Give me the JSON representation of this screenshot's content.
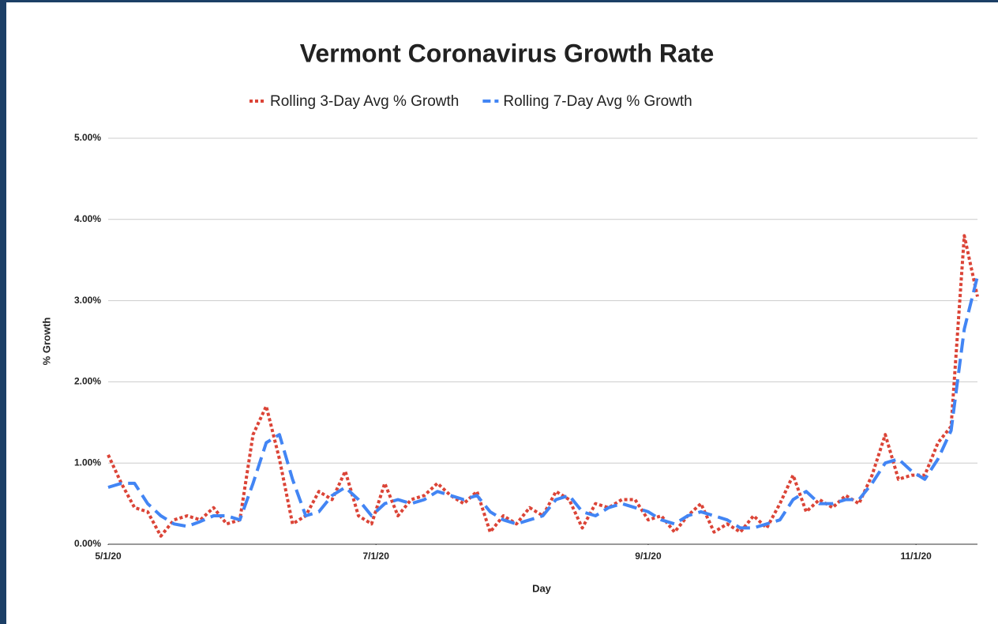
{
  "chart_data": {
    "type": "line",
    "title": "Vermont Coronavirus Growth Rate",
    "x_label": "Day",
    "y_label": "% Growth",
    "x": [
      "5/1/20",
      "5/4/20",
      "5/7/20",
      "5/10/20",
      "5/13/20",
      "5/16/20",
      "5/19/20",
      "5/22/20",
      "5/25/20",
      "5/28/20",
      "5/31/20",
      "6/3/20",
      "6/6/20",
      "6/9/20",
      "6/12/20",
      "6/15/20",
      "6/18/20",
      "6/21/20",
      "6/24/20",
      "6/27/20",
      "6/30/20",
      "7/3/20",
      "7/6/20",
      "7/9/20",
      "7/12/20",
      "7/15/20",
      "7/18/20",
      "7/21/20",
      "7/24/20",
      "7/27/20",
      "7/30/20",
      "8/2/20",
      "8/5/20",
      "8/8/20",
      "8/11/20",
      "8/14/20",
      "8/17/20",
      "8/20/20",
      "8/23/20",
      "8/26/20",
      "8/29/20",
      "9/1/20",
      "9/4/20",
      "9/7/20",
      "9/10/20",
      "9/13/20",
      "9/16/20",
      "9/19/20",
      "9/22/20",
      "9/25/20",
      "9/28/20",
      "10/1/20",
      "10/4/20",
      "10/7/20",
      "10/10/20",
      "10/13/20",
      "10/16/20",
      "10/19/20",
      "10/22/20",
      "10/25/20",
      "10/28/20",
      "10/31/20",
      "11/3/20",
      "11/6/20",
      "11/9/20",
      "11/12/20",
      "11/15/20"
    ],
    "series": [
      {
        "name": "Rolling 3-Day Avg % Growth",
        "color": "#db4437",
        "dash": "dotted",
        "values": [
          1.1,
          0.75,
          0.45,
          0.4,
          0.1,
          0.3,
          0.35,
          0.3,
          0.45,
          0.25,
          0.3,
          1.35,
          1.7,
          1.05,
          0.25,
          0.35,
          0.65,
          0.55,
          0.9,
          0.35,
          0.25,
          0.75,
          0.35,
          0.55,
          0.6,
          0.75,
          0.6,
          0.5,
          0.65,
          0.15,
          0.35,
          0.25,
          0.45,
          0.35,
          0.65,
          0.55,
          0.2,
          0.5,
          0.45,
          0.55,
          0.55,
          0.3,
          0.35,
          0.15,
          0.35,
          0.5,
          0.15,
          0.25,
          0.15,
          0.35,
          0.2,
          0.5,
          0.85,
          0.4,
          0.55,
          0.45,
          0.6,
          0.5,
          0.85,
          1.35,
          0.8,
          0.85,
          0.85,
          1.25,
          1.45,
          3.8,
          3.05
        ]
      },
      {
        "name": "Rolling 7-Day Avg % Growth",
        "color": "#4285f4",
        "dash": "dashed",
        "values": [
          0.7,
          0.75,
          0.75,
          0.5,
          0.35,
          0.25,
          0.22,
          0.28,
          0.35,
          0.35,
          0.3,
          0.75,
          1.25,
          1.35,
          0.8,
          0.35,
          0.4,
          0.6,
          0.7,
          0.55,
          0.35,
          0.5,
          0.55,
          0.5,
          0.55,
          0.65,
          0.6,
          0.55,
          0.6,
          0.4,
          0.3,
          0.25,
          0.3,
          0.35,
          0.55,
          0.6,
          0.4,
          0.35,
          0.45,
          0.5,
          0.45,
          0.4,
          0.3,
          0.25,
          0.35,
          0.4,
          0.35,
          0.3,
          0.2,
          0.2,
          0.25,
          0.3,
          0.55,
          0.65,
          0.5,
          0.5,
          0.55,
          0.55,
          0.75,
          1.0,
          1.05,
          0.9,
          0.8,
          1.05,
          1.4,
          2.65,
          3.3
        ]
      }
    ],
    "xlim": [
      "5/1/20",
      "11/15/20"
    ],
    "xticks": [
      "5/1/20",
      "7/1/20",
      "9/1/20",
      "11/1/20"
    ],
    "ylim": [
      0,
      5
    ],
    "yticks": [
      {
        "value": 0,
        "label": "0.00%"
      },
      {
        "value": 1,
        "label": "1.00%"
      },
      {
        "value": 2,
        "label": "2.00%"
      },
      {
        "value": 3,
        "label": "3.00%"
      },
      {
        "value": 4,
        "label": "4.00%"
      },
      {
        "value": 5,
        "label": "5.00%"
      }
    ],
    "grid": true,
    "legend": "top"
  }
}
